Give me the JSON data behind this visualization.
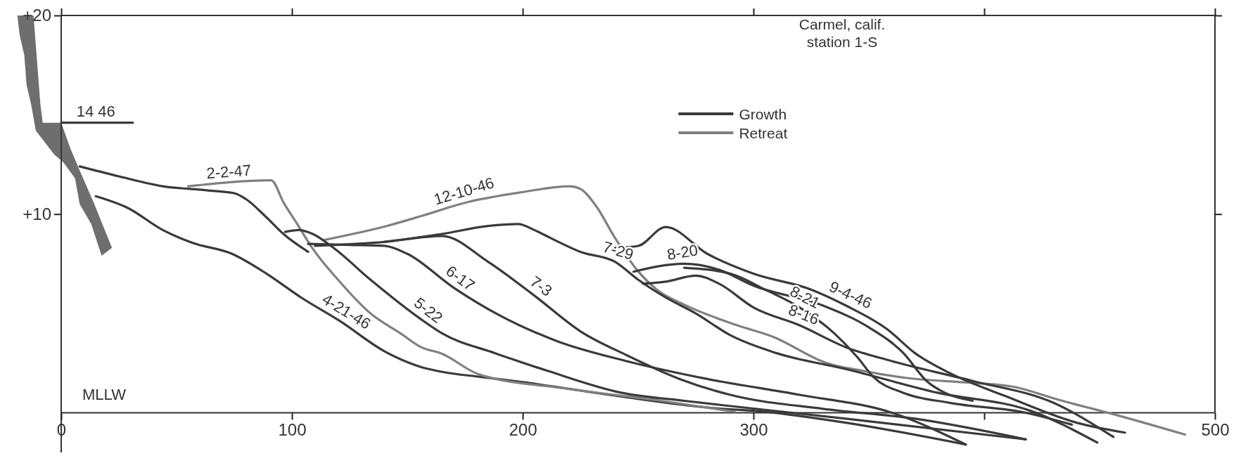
{
  "chart_data": {
    "type": "line",
    "title": "Carmel, calif.",
    "subtitle": "station 1-S",
    "xlim": [
      0,
      500
    ],
    "ylim": [
      -2,
      20
    ],
    "xticks": [
      0,
      100,
      200,
      300,
      {
        "value": 400,
        "label": null
      },
      500
    ],
    "yticks": [
      {
        "value": 10,
        "label": "+10"
      },
      {
        "value": 20,
        "label": "+20"
      }
    ],
    "grid": false,
    "legend": "top right",
    "marker": "none",
    "line_style": "solid",
    "series": [
      {
        "name": "Growth",
        "color": "#3a3a3a",
        "x": [
          15,
          29,
          44,
          57,
          74,
          89,
          104,
          121,
          140,
          156,
          165,
          182,
          200,
          223,
          246,
          281,
          305,
          340,
          392
        ],
        "values": [
          10.9,
          10.3,
          9.2,
          8.55,
          8.0,
          7.0,
          5.8,
          4.6,
          3.1,
          2.3,
          2.06,
          1.8,
          1.54,
          1.15,
          0.76,
          0.25,
          0.05,
          -0.5,
          -1.6
        ]
      },
      {
        "name": "Retreat",
        "color": "#808080",
        "x": [
          55,
          91,
          96.5,
          102,
          109,
          121,
          134,
          147,
          156,
          165,
          181,
          220,
          260,
          292
        ],
        "values": [
          11.4,
          11.7,
          10.55,
          9.55,
          8.26,
          6.56,
          5.0,
          4.0,
          3.3,
          2.97,
          1.93,
          1.2,
          0.6,
          0.05
        ]
      },
      {
        "color": "#3a3a3a",
        "x": [
          8,
          25,
          44,
          63,
          75,
          80,
          89,
          96.5,
          107
        ],
        "values": [
          12.4,
          11.9,
          11.4,
          11.2,
          11.05,
          10.76,
          9.83,
          8.98,
          8.1
        ]
      },
      {
        "color": "#808080",
        "x": [
          114,
          141,
          156,
          176,
          199.5,
          220.5,
          225,
          232,
          240,
          250,
          258,
          270,
          293,
          310,
          324,
          328,
          348,
          367,
          393,
          413,
          432,
          458,
          487
        ],
        "values": [
          8.7,
          9.4,
          9.9,
          10.6,
          11.1,
          11.4,
          11.27,
          10.37,
          8.8,
          7.12,
          6.21,
          5.44,
          4.4,
          3.75,
          2.9,
          2.67,
          2.1,
          1.74,
          1.52,
          1.3,
          0.66,
          -0.14,
          -1.1
        ]
      },
      {
        "color": "#3a3a3a",
        "x": [
          97,
          103,
          109,
          118,
          134,
          156,
          165,
          188,
          211,
          243,
          270,
          293,
          340,
          418
        ],
        "values": [
          9.1,
          9.2,
          9.0,
          8.3,
          6.7,
          4.7,
          4.0,
          3.0,
          2.1,
          1.0,
          0.6,
          0.3,
          -0.3,
          -1.34
        ]
      },
      {
        "color": "#3a3a3a",
        "x": [
          107,
          125,
          140,
          150,
          170,
          190,
          215,
          245,
          280,
          320,
          360,
          392
        ],
        "values": [
          8.5,
          8.45,
          8.4,
          8.0,
          6.3,
          4.9,
          3.6,
          2.6,
          1.7,
          0.9,
          0.0,
          -1.6
        ]
      },
      {
        "color": "#3a3a3a",
        "x": [
          110,
          140,
          165,
          185,
          205,
          225,
          245,
          268,
          290,
          330,
          370,
          418
        ],
        "values": [
          8.4,
          8.6,
          8.9,
          7.6,
          5.9,
          4.1,
          2.9,
          1.7,
          0.9,
          0.2,
          -0.3,
          -1.34
        ]
      },
      {
        "color": "#3a3a3a",
        "x": [
          140,
          165,
          185,
          198,
          205,
          212,
          225,
          240,
          250,
          262,
          275,
          290,
          310,
          340,
          380,
          420,
          449
        ],
        "values": [
          8.6,
          9.0,
          9.4,
          9.5,
          9.2,
          8.8,
          8.1,
          7.6,
          6.7,
          5.8,
          5.0,
          3.9,
          3.0,
          2.2,
          1.0,
          0.1,
          -1.5
        ]
      },
      {
        "color": "#3a3a3a",
        "x": [
          252,
          262,
          275,
          285,
          300,
          320,
          340,
          360,
          395,
          430,
          456
        ],
        "values": [
          6.5,
          6.6,
          6.9,
          6.5,
          5.3,
          4.4,
          3.3,
          2.6,
          1.6,
          0.5,
          -1.22
        ]
      },
      {
        "color": "#3a3a3a",
        "x": [
          248,
          270,
          285,
          300,
          330,
          350,
          365,
          375,
          383,
          395
        ],
        "values": [
          7.1,
          7.5,
          7.2,
          6.4,
          5.4,
          4.3,
          3.0,
          1.6,
          1.0,
          0.6
        ]
      },
      {
        "color": "#3a3a3a",
        "x": [
          270,
          290,
          305,
          320,
          335,
          345,
          352,
          365,
          385,
          418,
          438
        ],
        "values": [
          7.3,
          7.0,
          6.2,
          5.3,
          4.0,
          2.8,
          1.8,
          1.0,
          0.5,
          0.0,
          -0.6
        ]
      },
      {
        "color": "#3a3a3a",
        "x": [
          240,
          250,
          262,
          280,
          300,
          325,
          340,
          358,
          370,
          385,
          410,
          440,
          461
        ],
        "values": [
          8.3,
          8.4,
          9.35,
          8.0,
          7.0,
          6.2,
          5.4,
          4.2,
          3.0,
          2.0,
          0.8,
          -0.5,
          -1.0
        ]
      },
      {
        "color": "#3a3a3a",
        "x": [
          0,
          31
        ],
        "values": [
          14.6,
          14.6
        ]
      }
    ],
    "annotations": [
      {
        "text": "2-2-47",
        "x": 73,
        "y": 11.55
      },
      {
        "text": "12-10-46",
        "x": 176,
        "y": 10.6
      },
      {
        "text": "4-21-46",
        "x": 121,
        "y": 4.6
      },
      {
        "text": "5-22",
        "x": 156,
        "y": 4.7
      },
      {
        "text": "6-17",
        "x": 170,
        "y": 6.3
      },
      {
        "text": "7-3",
        "x": 205,
        "y": 5.9
      },
      {
        "text": "7-29",
        "x": 240,
        "y": 7.6
      },
      {
        "text": "8-20",
        "x": 270,
        "y": 7.5
      },
      {
        "text": "8-16",
        "x": 320,
        "y": 4.4
      },
      {
        "text": "8-21",
        "x": 320,
        "y": 5.3
      },
      {
        "text": "9-4-46",
        "x": 340,
        "y": 5.4
      },
      {
        "text": "14 46",
        "x": 15,
        "y": 14.6
      },
      "MLLW"
    ]
  }
}
